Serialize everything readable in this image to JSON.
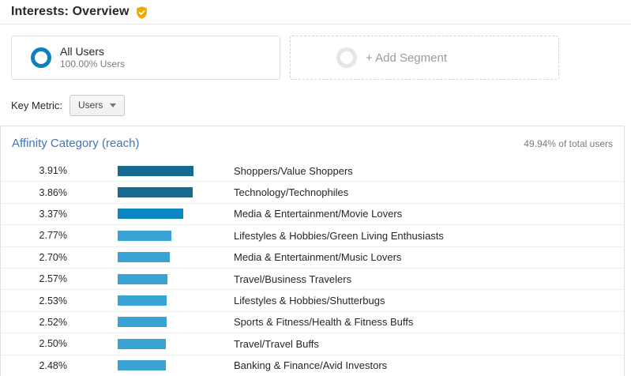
{
  "header": {
    "title": "Interests: Overview"
  },
  "segments": {
    "all_users": {
      "label": "All Users",
      "sublabel": "100.00% Users"
    },
    "add_segment": {
      "label": "+ Add Segment"
    }
  },
  "key_metric": {
    "label": "Key Metric:",
    "selected": "Users"
  },
  "panel": {
    "title": "Affinity Category (reach)",
    "total": "49.94% of total users"
  },
  "colors": {
    "badge_gold": "#f0a800",
    "segment_ring_blue": "#0d80c0",
    "link_blue": "#4374b7"
  },
  "chart_data": {
    "type": "bar",
    "title": "Affinity Category (reach)",
    "subtitle": "49.94% of total users",
    "categories": [
      "Shoppers/Value Shoppers",
      "Technology/Technophiles",
      "Media & Entertainment/Movie Lovers",
      "Lifestyles & Hobbies/Green Living Enthusiasts",
      "Media & Entertainment/Music Lovers",
      "Travel/Business Travelers",
      "Lifestyles & Hobbies/Shutterbugs",
      "Sports & Fitness/Health & Fitness Buffs",
      "Travel/Travel Buffs",
      "Banking & Finance/Avid Investors"
    ],
    "values": [
      3.91,
      3.86,
      3.37,
      2.77,
      2.7,
      2.57,
      2.53,
      2.52,
      2.5,
      2.48
    ],
    "value_labels": [
      "3.91%",
      "3.86%",
      "3.37%",
      "2.77%",
      "2.70%",
      "2.57%",
      "2.53%",
      "2.52%",
      "2.50%",
      "2.48%"
    ],
    "bar_colors": [
      "#16698f",
      "#16698f",
      "#0b86c0",
      "#3ba2d4",
      "#3ba2d4",
      "#3ba2d4",
      "#3ba2d4",
      "#3ba2d4",
      "#3ba2d4",
      "#3ba2d4"
    ],
    "xlabel": "",
    "ylabel": "",
    "xlim": [
      0,
      3.91
    ],
    "legend": false,
    "orientation": "horizontal"
  }
}
